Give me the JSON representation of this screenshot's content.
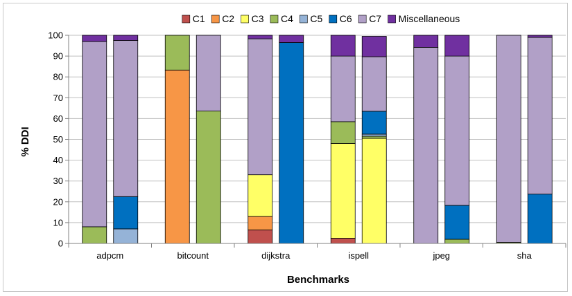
{
  "chart_data": {
    "type": "bar",
    "stacked": true,
    "xlabel": "Benchmarks",
    "ylabel": "% DDI",
    "ylim": [
      0,
      100
    ],
    "yticks": [
      0,
      10,
      20,
      30,
      40,
      50,
      60,
      70,
      80,
      90,
      100
    ],
    "grid": "horizontal",
    "legend_position": "top",
    "categories": [
      "adpcm",
      "bitcount",
      "dijkstra",
      "ispell",
      "jpeg",
      "sha"
    ],
    "bars_per_category": 2,
    "series": [
      {
        "name": "C1",
        "color": "#c0504d",
        "values": [
          [
            0,
            0
          ],
          [
            0,
            0
          ],
          [
            6.5,
            0
          ],
          [
            2.5,
            0
          ],
          [
            0,
            0
          ],
          [
            0,
            0
          ]
        ]
      },
      {
        "name": "C2",
        "color": "#f79646",
        "values": [
          [
            0,
            0
          ],
          [
            83.3,
            0
          ],
          [
            6.5,
            0
          ],
          [
            0,
            0
          ],
          [
            0,
            0
          ],
          [
            0,
            0
          ]
        ]
      },
      {
        "name": "C3",
        "color": "#ffff66",
        "values": [
          [
            0,
            0
          ],
          [
            0,
            0
          ],
          [
            20,
            0
          ],
          [
            45.5,
            50.5
          ],
          [
            0,
            0
          ],
          [
            0,
            0
          ]
        ]
      },
      {
        "name": "C4",
        "color": "#9bbb59",
        "values": [
          [
            8,
            0
          ],
          [
            16.7,
            63.6
          ],
          [
            0,
            0
          ],
          [
            10.5,
            1
          ],
          [
            0,
            2
          ],
          [
            0.5,
            0
          ]
        ]
      },
      {
        "name": "C5",
        "color": "#95b3d7",
        "values": [
          [
            0,
            7
          ],
          [
            0,
            0
          ],
          [
            0,
            0
          ],
          [
            0,
            1
          ],
          [
            0,
            0
          ],
          [
            0,
            0
          ]
        ]
      },
      {
        "name": "C6",
        "color": "#0070c0",
        "values": [
          [
            0,
            15.5
          ],
          [
            0,
            0
          ],
          [
            0,
            96.5
          ],
          [
            0,
            11
          ],
          [
            0,
            16.3
          ],
          [
            0,
            23.7
          ]
        ]
      },
      {
        "name": "C7",
        "color": "#b1a0c7",
        "values": [
          [
            89,
            75
          ],
          [
            0,
            36.4
          ],
          [
            65.3,
            0
          ],
          [
            31.5,
            26.2
          ],
          [
            94.2,
            71.7
          ],
          [
            99.5,
            75.3
          ]
        ]
      },
      {
        "name": "Miscellaneous",
        "color": "#7030a0",
        "values": [
          [
            3,
            2.5
          ],
          [
            0,
            0
          ],
          [
            1.7,
            3.5
          ],
          [
            10,
            9.8
          ],
          [
            5.8,
            10
          ],
          [
            0,
            1
          ]
        ]
      }
    ]
  }
}
